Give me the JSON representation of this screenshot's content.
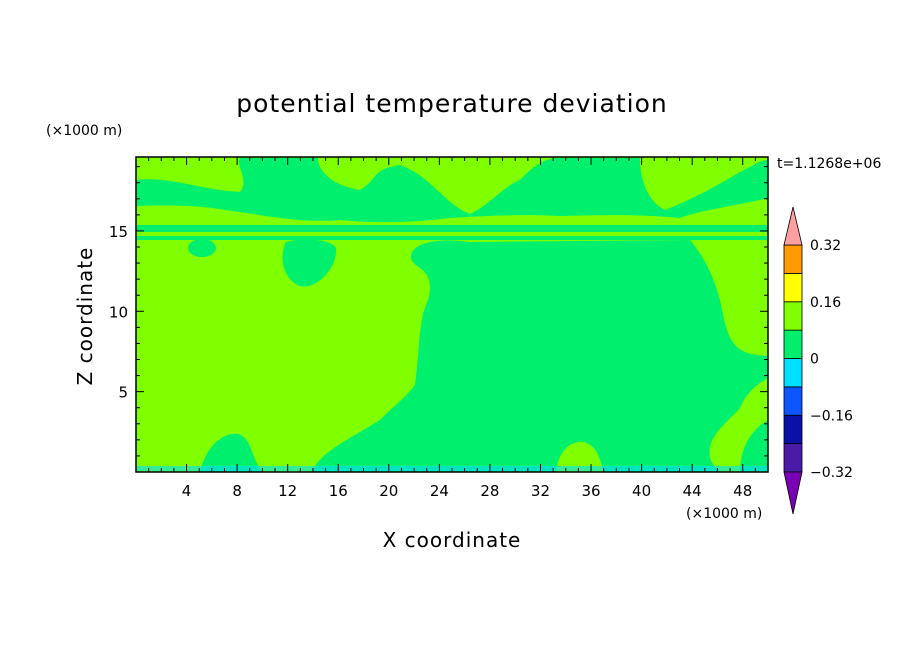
{
  "chart_data": {
    "type": "heatmap",
    "title": "potential temperature deviation",
    "xlabel": "X coordinate",
    "ylabel": "Z coordinate",
    "x_unit": "(×1000 m)",
    "y_unit": "(×1000 m)",
    "time_label": "t=1.1268e+06",
    "xlim": [
      0,
      50
    ],
    "ylim": [
      0,
      19.6
    ],
    "x_ticks": [
      4,
      8,
      12,
      16,
      20,
      24,
      28,
      32,
      36,
      40,
      44,
      48
    ],
    "y_ticks": [
      5,
      10,
      15
    ],
    "colorbar": {
      "levels": [
        -0.4,
        -0.32,
        -0.24,
        -0.16,
        -0.08,
        0,
        0.08,
        0.16,
        0.24,
        0.32,
        0.4
      ],
      "colors": [
        "#7a00b5",
        "#4a1aa8",
        "#0b10a6",
        "#0c55ff",
        "#00e0ff",
        "#00f06e",
        "#7fff00",
        "#ffff00",
        "#ff9a00",
        "#ff3030",
        "#ffa0a0"
      ],
      "labels": [
        "0.32",
        "0.16",
        "0",
        "-0.16",
        "-0.32"
      ],
      "label_values": [
        0.32,
        0.16,
        0,
        -0.16,
        -0.32
      ],
      "extend": "both"
    },
    "field_colors": {
      "positive": "#7fff00",
      "negative": "#00f06e",
      "strong_negative": "#00e0ff"
    }
  }
}
